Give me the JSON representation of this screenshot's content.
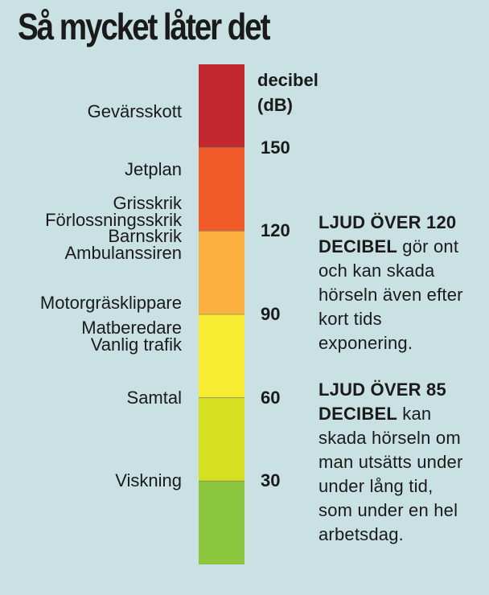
{
  "title": "Så mycket låter det",
  "chart_data": {
    "type": "bar",
    "orientation": "vertical-scale",
    "unit_label_line1": "decibel",
    "unit_label_line2": "(dB)",
    "ylim": [
      0,
      180
    ],
    "bands": [
      {
        "from": 0,
        "to": 30,
        "color": "#8cc63f"
      },
      {
        "from": 30,
        "to": 60,
        "color": "#d7df23"
      },
      {
        "from": 60,
        "to": 90,
        "color": "#f7ec32"
      },
      {
        "from": 90,
        "to": 120,
        "color": "#fbb040"
      },
      {
        "from": 120,
        "to": 150,
        "color": "#f15a29"
      },
      {
        "from": 150,
        "to": 180,
        "color": "#c1272d"
      }
    ],
    "ticks": [
      30,
      60,
      90,
      120,
      150
    ],
    "sources": [
      {
        "label": "Gevärsskott",
        "value": 163
      },
      {
        "label": "Jetplan",
        "value": 142
      },
      {
        "label": "Grisskrik",
        "value": 130
      },
      {
        "label": "Förlossningsskrik",
        "value": 124
      },
      {
        "label": "Barnskrik",
        "value": 118
      },
      {
        "label": "Ambulanssiren",
        "value": 112
      },
      {
        "label": "Motorgräsklippare",
        "value": 94
      },
      {
        "label": "Matberedare",
        "value": 85
      },
      {
        "label": "Vanlig trafik",
        "value": 79
      },
      {
        "label": "Samtal",
        "value": 60
      },
      {
        "label": "Viskning",
        "value": 30
      }
    ]
  },
  "notes": [
    {
      "bold": "LJUD ÖVER 120 DECIBEL",
      "rest": " gör ont och kan skada hörseln även efter kort tids exponering."
    },
    {
      "bold": "LJUD ÖVER 85 DECIBEL",
      "rest": " kan skada hörseln om man utsätts under under lång tid, som under en hel arbetsdag."
    }
  ]
}
